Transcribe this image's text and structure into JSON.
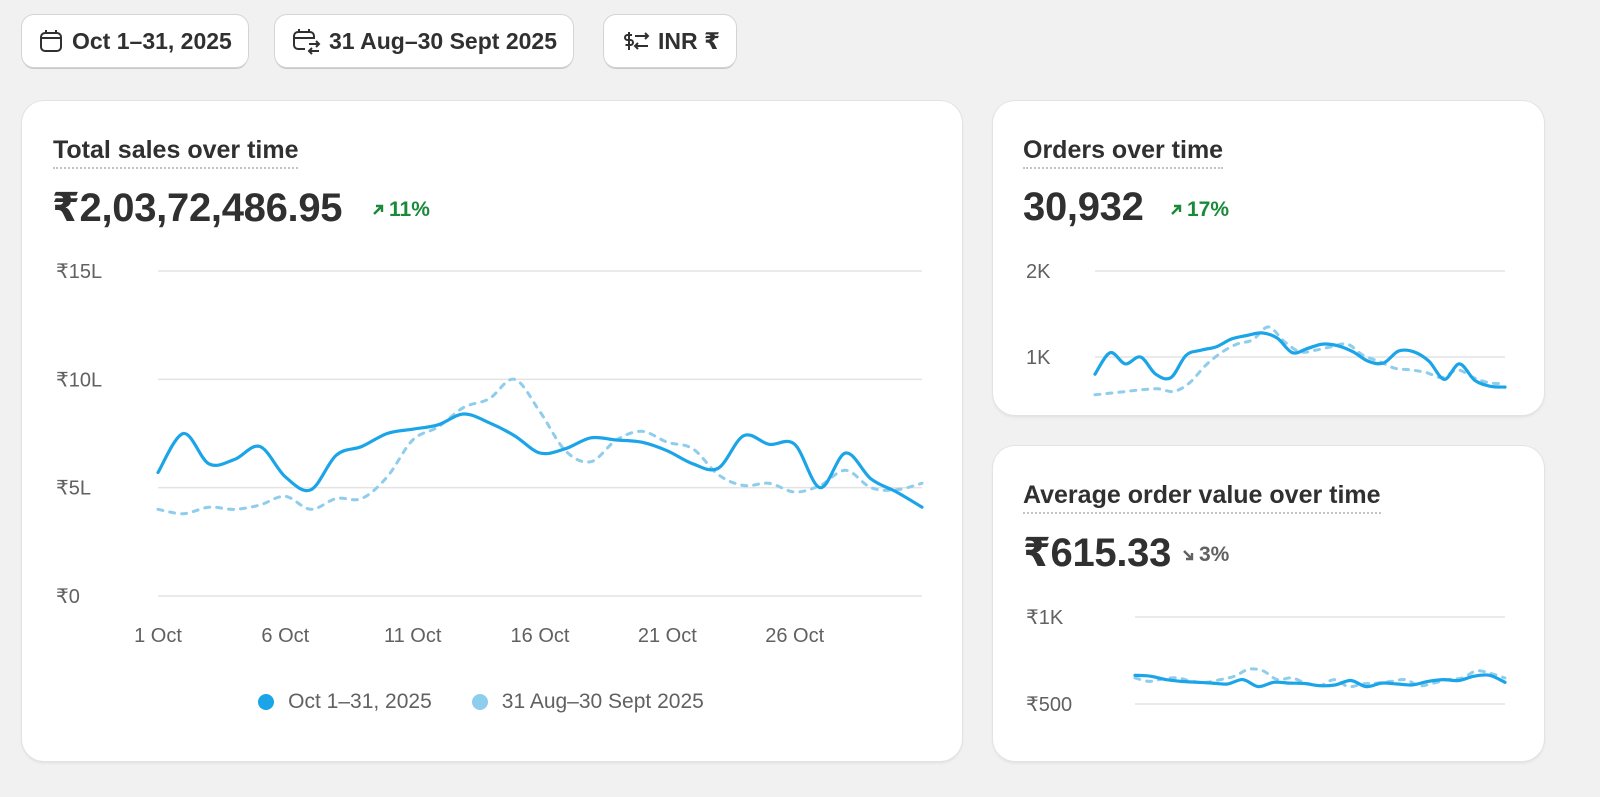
{
  "filters": {
    "date_range": "Oct 1–31, 2025",
    "compare_range": "31 Aug–30 Sept 2025",
    "currency": "INR ₹"
  },
  "colors": {
    "current": "#1ba5e8",
    "previous": "#8fcdec",
    "positive": "#1a8a3a",
    "neutral": "#616161"
  },
  "total_sales": {
    "title": "Total sales over time",
    "value": "₹2,03,72,486.95",
    "change": "11%",
    "direction": "up"
  },
  "orders": {
    "title": "Orders over time",
    "value": "30,932",
    "change": "17%",
    "direction": "up"
  },
  "aov": {
    "title": "Average order value over time",
    "value": "₹615.33",
    "change": "3%",
    "direction": "down"
  },
  "chart_data": [
    {
      "id": "sales",
      "type": "line",
      "title": "Total sales over time",
      "unit": "₹ lakh",
      "ylim": [
        0,
        15
      ],
      "y_ticks": [
        0,
        5,
        10,
        15
      ],
      "y_tick_labels": [
        "₹0",
        "₹5L",
        "₹10L",
        "₹15L"
      ],
      "x_ticks": [
        1,
        6,
        11,
        16,
        21,
        26
      ],
      "x_tick_labels": [
        "1 Oct",
        "6 Oct",
        "11 Oct",
        "16 Oct",
        "21 Oct",
        "26 Oct"
      ],
      "grid": true,
      "legend": "bottom",
      "series": [
        {
          "name": "Oct 1–31, 2025",
          "style": "solid",
          "values": [
            5.7,
            7.5,
            6.1,
            6.3,
            6.9,
            5.5,
            4.9,
            6.5,
            6.9,
            7.5,
            7.7,
            7.9,
            8.4,
            8.0,
            7.4,
            6.6,
            6.8,
            7.3,
            7.2,
            7.1,
            6.7,
            6.1,
            5.9,
            7.4,
            7.0,
            7.0,
            5.0,
            6.6,
            5.4,
            4.8,
            4.1
          ]
        },
        {
          "name": "31 Aug–30 Sept 2025",
          "style": "dashed",
          "values": [
            4.0,
            3.8,
            4.1,
            4.0,
            4.2,
            4.6,
            4.0,
            4.5,
            4.5,
            5.5,
            7.2,
            7.8,
            8.7,
            9.1,
            10.0,
            8.5,
            6.7,
            6.2,
            7.2,
            7.6,
            7.1,
            6.8,
            5.6,
            5.1,
            5.2,
            4.8,
            5.1,
            5.8,
            5.0,
            4.9,
            5.2
          ]
        }
      ]
    },
    {
      "id": "orders",
      "type": "line",
      "title": "Orders over time",
      "ylim": [
        0,
        2000
      ],
      "y_ticks": [
        1000,
        2000
      ],
      "y_tick_labels": [
        "1K",
        "2K"
      ],
      "grid": true,
      "series": [
        {
          "name": "Oct 1–31, 2025",
          "style": "solid",
          "values": [
            800,
            1050,
            920,
            1000,
            800,
            760,
            1020,
            1080,
            1120,
            1210,
            1250,
            1280,
            1220,
            1050,
            1100,
            1150,
            1130,
            1060,
            950,
            930,
            1070,
            1060,
            950,
            740,
            920,
            730,
            660,
            650
          ]
        },
        {
          "name": "31 Aug–30 Sept 2025",
          "style": "dashed",
          "values": [
            560,
            580,
            600,
            620,
            630,
            600,
            700,
            900,
            1050,
            1150,
            1200,
            1350,
            1180,
            1060,
            1080,
            1120,
            1150,
            1020,
            950,
            870,
            850,
            820,
            760,
            850,
            760,
            700,
            690
          ]
        }
      ]
    },
    {
      "id": "aov",
      "type": "line",
      "title": "Average order value over time",
      "ylim": [
        500,
        1000
      ],
      "y_ticks": [
        500,
        1000
      ],
      "y_tick_labels": [
        "₹500",
        "₹1K"
      ],
      "grid": true,
      "series": [
        {
          "name": "Oct 1–31, 2025",
          "style": "solid",
          "values": [
            665,
            660,
            640,
            630,
            625,
            620,
            615,
            640,
            600,
            625,
            620,
            618,
            605,
            610,
            635,
            600,
            620,
            615,
            610,
            630,
            640,
            635,
            660,
            665,
            625
          ]
        },
        {
          "name": "31 Aug–30 Sept 2025",
          "style": "dashed",
          "values": [
            650,
            630,
            645,
            650,
            630,
            625,
            640,
            660,
            700,
            690,
            640,
            650,
            620,
            605,
            640,
            600,
            615,
            620,
            630,
            640,
            605,
            620,
            640,
            650,
            690,
            675,
            650
          ]
        }
      ]
    }
  ]
}
